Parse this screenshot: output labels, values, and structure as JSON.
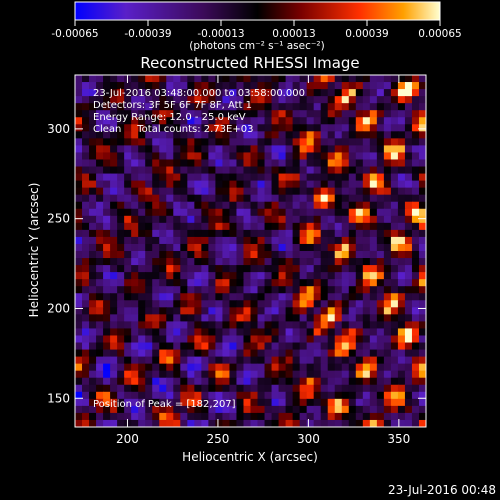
{
  "chart_data": {
    "type": "heatmap",
    "title": "Reconstructed RHESSI Image",
    "xlabel": "Heliocentric X (arcsec)",
    "ylabel": "Heliocentric Y (arcsec)",
    "xlim": [
      171,
      365
    ],
    "ylim": [
      134,
      330
    ],
    "x_ticks": [
      200,
      250,
      300,
      350
    ],
    "y_ticks": [
      150,
      200,
      250,
      300
    ],
    "colorbar": {
      "colormap": "idl-3-hot-diverging",
      "colors": [
        "#0000ff",
        "#5a1fc8",
        "#3c0a5a",
        "#000000",
        "#7a0000",
        "#ff3000",
        "#ffa000",
        "#ffffd0"
      ],
      "range": [
        -0.00065,
        0.00065
      ],
      "tick_labels": [
        "-0.00065",
        "-0.00039",
        "-0.00013",
        "0.00013",
        "0.00039",
        "0.00065"
      ],
      "unit_label": "(photons cm⁻² s⁻¹ asec⁻²)"
    },
    "annotations": {
      "time_range": "23-Jul-2016 03:48:00.000 to 03:58:00.000",
      "detectors": "Detectors: 3F 5F 6F 7F 8F, Att 1",
      "energy_range": "Energy Range: 12.0 - 25.0 keV",
      "method_counts": "Clean     Total counts: 2.73E+03",
      "peak": "Position of Peak = [182,207]"
    },
    "peak_position": [
      182,
      207
    ],
    "peak_value": 0.00065
  },
  "footer": {
    "timestamp": "23-Jul-2016 00:48"
  }
}
